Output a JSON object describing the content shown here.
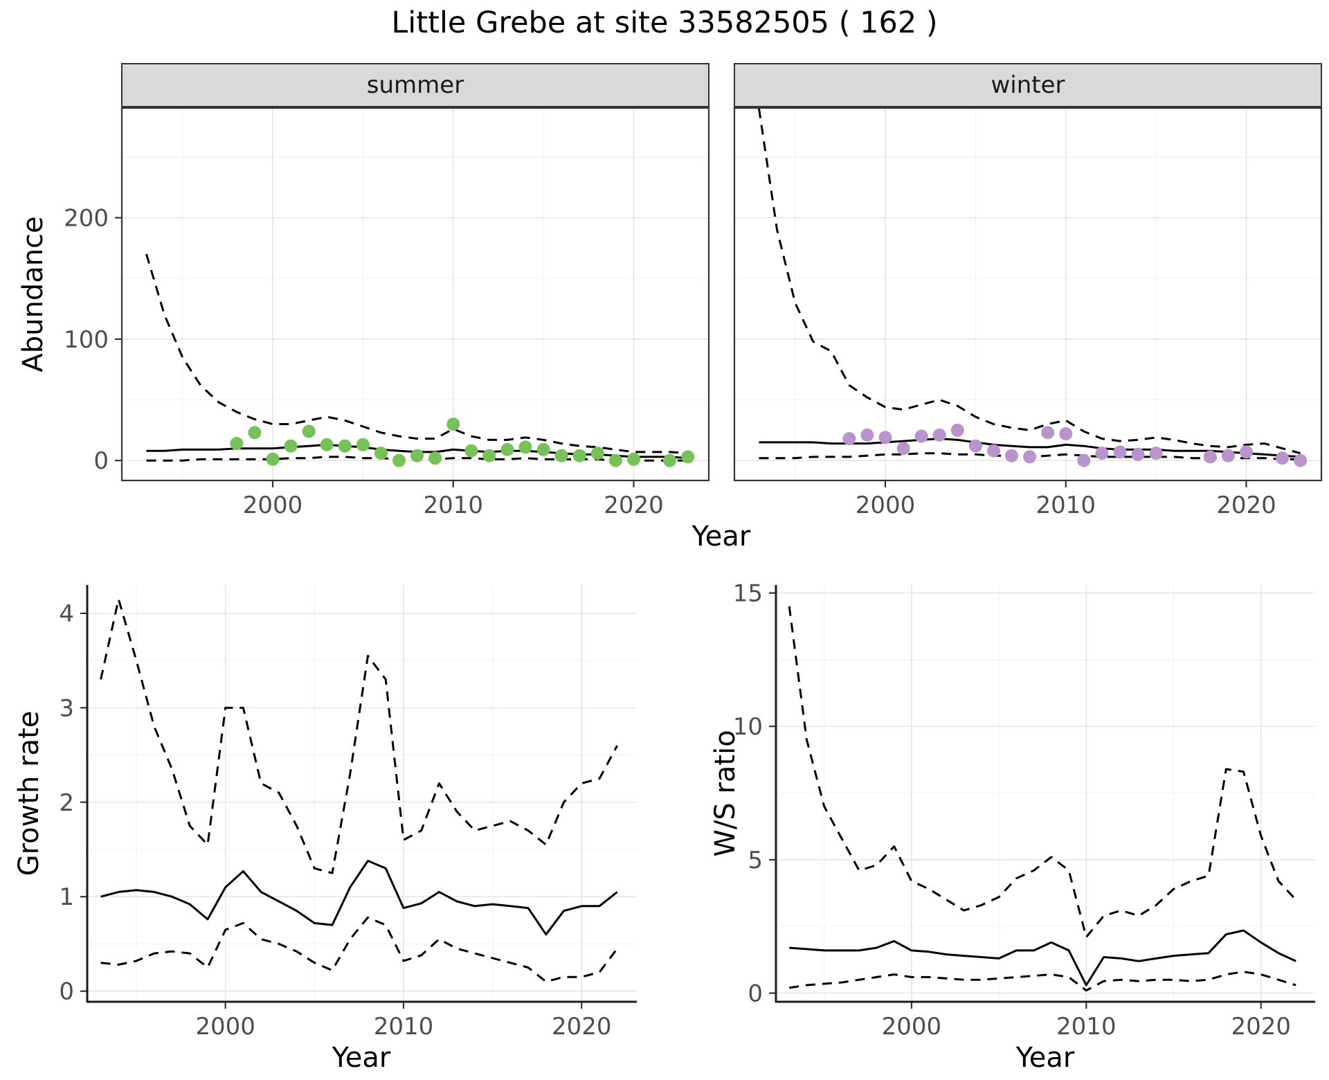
{
  "title": "Little Grebe at site 33582505 ( 162 )",
  "theme": {
    "background": "#FFFFFF",
    "strip_background": "#D9D9D9",
    "strip_border": "#333333",
    "panel_border": "#333333",
    "grid_major": "#E6E6E6",
    "grid_minor": "#F2F2F2",
    "line_color": "#000000",
    "tick_label_color": "#4D4D4D",
    "axis_title_color": "#000000",
    "summer_point_color": "#76C158",
    "winter_point_color": "#B893CC"
  },
  "top": {
    "facets": [
      "summer",
      "winter"
    ],
    "ylabel": "Abundance",
    "xlabel": "Year"
  },
  "bottom_left": {
    "ylabel": "Growth rate",
    "xlabel": "Year"
  },
  "bottom_right": {
    "ylabel": "W/S ratio",
    "xlabel": "Year"
  },
  "chart_data": [
    {
      "id": "summer",
      "type": "line",
      "facet": "summer",
      "xlabel": "Year",
      "ylabel": "Abundance",
      "xlim": [
        1991.6,
        2024.2
      ],
      "ylim": [
        -17,
        291
      ],
      "xticks": [
        2000,
        2010,
        2020
      ],
      "yticks": [
        0,
        100,
        200
      ],
      "grid": true,
      "x": [
        1993,
        1994,
        1995,
        1996,
        1997,
        1998,
        1999,
        2000,
        2001,
        2002,
        2003,
        2004,
        2005,
        2006,
        2007,
        2008,
        2009,
        2010,
        2011,
        2012,
        2013,
        2014,
        2015,
        2016,
        2017,
        2018,
        2019,
        2020,
        2021,
        2022,
        2023
      ],
      "series": [
        {
          "name": "upper-ci",
          "style": "dashed",
          "values": [
            170,
            120,
            85,
            62,
            48,
            40,
            34,
            30,
            30,
            33,
            36,
            33,
            28,
            23,
            20,
            18,
            18,
            26,
            20,
            17,
            17,
            19,
            17,
            14,
            12,
            11,
            9,
            7,
            7,
            7,
            6
          ]
        },
        {
          "name": "lower-ci",
          "style": "dashed",
          "values": [
            0,
            0,
            0,
            1,
            1,
            1,
            1,
            1,
            2,
            2,
            3,
            3,
            2,
            2,
            1,
            1,
            1,
            2,
            2,
            1,
            1,
            2,
            1,
            1,
            1,
            1,
            0,
            0,
            0,
            0,
            0
          ]
        },
        {
          "name": "fit",
          "style": "solid",
          "values": [
            8,
            8,
            9,
            9,
            9,
            10,
            10,
            10,
            11,
            12,
            13,
            12,
            11,
            9,
            8,
            7,
            7,
            9,
            8,
            7,
            8,
            8,
            7,
            6,
            5,
            5,
            4,
            3,
            3,
            3,
            2
          ]
        }
      ],
      "points": {
        "name": "observed-counts",
        "color": "#76C158",
        "x": [
          1998,
          1999,
          2000,
          2001,
          2002,
          2003,
          2004,
          2005,
          2006,
          2007,
          2008,
          2009,
          2010,
          2011,
          2012,
          2013,
          2014,
          2015,
          2016,
          2017,
          2018,
          2019,
          2020,
          2022,
          2023
        ],
        "y": [
          14,
          23,
          1,
          12,
          24,
          13,
          12,
          13,
          6,
          0,
          4,
          2,
          30,
          8,
          4,
          9,
          11,
          9,
          4,
          4,
          6,
          0,
          1,
          0,
          3
        ]
      }
    },
    {
      "id": "winter",
      "type": "line",
      "facet": "winter",
      "xlabel": "Year",
      "ylabel": "Abundance",
      "xlim": [
        1991.6,
        2024.2
      ],
      "ylim": [
        -17,
        291
      ],
      "xticks": [
        2000,
        2010,
        2020
      ],
      "yticks": [
        0,
        100,
        200
      ],
      "grid": true,
      "x": [
        1993,
        1994,
        1995,
        1996,
        1997,
        1998,
        1999,
        2000,
        2001,
        2002,
        2003,
        2004,
        2005,
        2006,
        2007,
        2008,
        2009,
        2010,
        2011,
        2012,
        2013,
        2014,
        2015,
        2016,
        2017,
        2018,
        2019,
        2020,
        2021,
        2022,
        2023
      ],
      "series": [
        {
          "name": "upper-ci",
          "style": "dashed",
          "values": [
            290,
            190,
            130,
            98,
            90,
            62,
            52,
            44,
            42,
            46,
            50,
            45,
            36,
            30,
            27,
            25,
            30,
            33,
            24,
            18,
            16,
            17,
            19,
            17,
            14,
            12,
            11,
            13,
            14,
            10,
            6
          ]
        },
        {
          "name": "lower-ci",
          "style": "dashed",
          "values": [
            2,
            2,
            2,
            3,
            3,
            3,
            4,
            5,
            5,
            6,
            6,
            5,
            5,
            4,
            4,
            3,
            4,
            5,
            4,
            3,
            3,
            3,
            3,
            3,
            2,
            2,
            2,
            2,
            2,
            1,
            1
          ]
        },
        {
          "name": "fit",
          "style": "solid",
          "values": [
            15,
            15,
            15,
            15,
            14,
            14,
            14,
            15,
            16,
            17,
            18,
            17,
            15,
            13,
            12,
            11,
            11,
            13,
            12,
            10,
            9,
            9,
            9,
            8,
            8,
            8,
            7,
            6,
            5,
            4,
            3
          ]
        }
      ],
      "points": {
        "name": "observed-counts",
        "color": "#B893CC",
        "x": [
          1998,
          1999,
          2000,
          2001,
          2002,
          2003,
          2004,
          2005,
          2006,
          2007,
          2008,
          2009,
          2010,
          2011,
          2012,
          2013,
          2014,
          2015,
          2018,
          2019,
          2020,
          2022,
          2023
        ],
        "y": [
          18,
          21,
          19,
          10,
          20,
          21,
          25,
          12,
          8,
          4,
          3,
          23,
          22,
          0,
          6,
          7,
          5,
          6,
          3,
          4,
          7,
          2,
          0
        ]
      }
    },
    {
      "id": "growth",
      "type": "line",
      "xlabel": "Year",
      "ylabel": "Growth rate",
      "xlim": [
        1992.2,
        2023.1
      ],
      "ylim": [
        -0.12,
        4.3
      ],
      "xticks": [
        2000,
        2010,
        2020
      ],
      "yticks": [
        0,
        1,
        2,
        3,
        4
      ],
      "grid": true,
      "x": [
        1993,
        1994,
        1995,
        1996,
        1997,
        1998,
        1999,
        2000,
        2001,
        2002,
        2003,
        2004,
        2005,
        2006,
        2007,
        2008,
        2009,
        2010,
        2011,
        2012,
        2013,
        2014,
        2015,
        2016,
        2017,
        2018,
        2019,
        2020,
        2021,
        2022
      ],
      "series": [
        {
          "name": "upper-ci",
          "style": "dashed",
          "values": [
            3.3,
            4.15,
            3.5,
            2.8,
            2.35,
            1.75,
            1.55,
            3.0,
            3.0,
            2.2,
            2.1,
            1.75,
            1.3,
            1.25,
            2.3,
            3.55,
            3.3,
            1.6,
            1.7,
            2.2,
            1.9,
            1.7,
            1.75,
            1.8,
            1.7,
            1.55,
            2.0,
            2.2,
            2.25,
            2.6
          ]
        },
        {
          "name": "lower-ci",
          "style": "dashed",
          "values": [
            0.3,
            0.28,
            0.32,
            0.4,
            0.42,
            0.4,
            0.25,
            0.65,
            0.72,
            0.55,
            0.5,
            0.42,
            0.3,
            0.22,
            0.55,
            0.78,
            0.7,
            0.32,
            0.38,
            0.55,
            0.45,
            0.4,
            0.35,
            0.3,
            0.25,
            0.1,
            0.15,
            0.15,
            0.2,
            0.45
          ]
        },
        {
          "name": "fit",
          "style": "solid",
          "values": [
            1.0,
            1.05,
            1.07,
            1.05,
            1.0,
            0.92,
            0.76,
            1.1,
            1.27,
            1.05,
            0.95,
            0.85,
            0.72,
            0.7,
            1.1,
            1.38,
            1.3,
            0.88,
            0.93,
            1.05,
            0.95,
            0.9,
            0.92,
            0.9,
            0.88,
            0.6,
            0.85,
            0.9,
            0.9,
            1.05
          ]
        }
      ]
    },
    {
      "id": "ratio",
      "type": "line",
      "xlabel": "Year",
      "ylabel": "W/S ratio",
      "xlim": [
        1992.2,
        2023.1
      ],
      "ylim": [
        -0.35,
        15.3
      ],
      "xticks": [
        2000,
        2010,
        2020
      ],
      "yticks": [
        0,
        5,
        10,
        15
      ],
      "grid": true,
      "x": [
        1993,
        1994,
        1995,
        1996,
        1997,
        1998,
        1999,
        2000,
        2001,
        2002,
        2003,
        2004,
        2005,
        2006,
        2007,
        2008,
        2009,
        2010,
        2011,
        2012,
        2013,
        2014,
        2015,
        2016,
        2017,
        2018,
        2019,
        2020,
        2021,
        2022
      ],
      "series": [
        {
          "name": "upper-ci",
          "style": "dashed",
          "values": [
            14.5,
            9.5,
            7.0,
            5.8,
            4.6,
            4.8,
            5.5,
            4.2,
            3.9,
            3.5,
            3.1,
            3.3,
            3.6,
            4.3,
            4.6,
            5.1,
            4.6,
            2.1,
            2.9,
            3.1,
            2.9,
            3.3,
            3.9,
            4.2,
            4.4,
            8.4,
            8.3,
            5.9,
            4.2,
            3.5
          ]
        },
        {
          "name": "lower-ci",
          "style": "dashed",
          "values": [
            0.2,
            0.3,
            0.35,
            0.4,
            0.5,
            0.6,
            0.7,
            0.6,
            0.6,
            0.55,
            0.5,
            0.5,
            0.55,
            0.6,
            0.65,
            0.7,
            0.6,
            0.1,
            0.45,
            0.5,
            0.45,
            0.5,
            0.5,
            0.45,
            0.5,
            0.7,
            0.8,
            0.7,
            0.5,
            0.3
          ]
        },
        {
          "name": "fit",
          "style": "solid",
          "values": [
            1.7,
            1.65,
            1.6,
            1.6,
            1.6,
            1.7,
            1.95,
            1.6,
            1.55,
            1.45,
            1.4,
            1.35,
            1.3,
            1.6,
            1.6,
            1.9,
            1.6,
            0.3,
            1.35,
            1.3,
            1.2,
            1.3,
            1.4,
            1.45,
            1.5,
            2.2,
            2.35,
            1.9,
            1.5,
            1.2
          ]
        }
      ]
    }
  ]
}
